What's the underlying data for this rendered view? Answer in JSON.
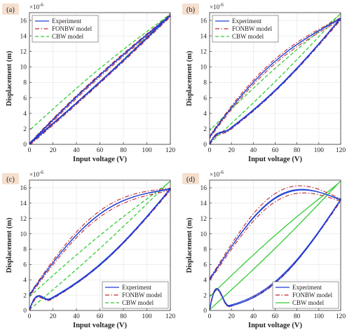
{
  "figure": {
    "background": "#ffffff",
    "panel_label_bg": "#f5dfcf",
    "axis_color": "#333333",
    "grid_color": "#e3e3e3"
  },
  "chart_data": [
    {
      "id": "a",
      "panel_label": "(a)",
      "type": "line",
      "xlabel": "Input voltage (V)",
      "ylabel": "Displacement (m)",
      "y_exponent": "×10",
      "y_exponent_power": "-6",
      "xlim": [
        0,
        120
      ],
      "ylim": [
        0,
        17
      ],
      "xticks": [
        0,
        20,
        40,
        60,
        80,
        100,
        120
      ],
      "yticks": [
        0,
        2,
        4,
        6,
        8,
        10,
        12,
        14,
        16
      ],
      "grid": true,
      "legend": {
        "location": "top-left"
      },
      "loop": {
        "amp": 60,
        "offset": 60,
        "low": 0.0,
        "high": 16.6,
        "up_bow": 0.6,
        "down_bow": 0.3,
        "turn": 0.0,
        "phase_shift": 0.02
      },
      "series": [
        {
          "name": "Experiment",
          "color": "#1f3fd8",
          "style": "solid"
        },
        {
          "name": "FONBW model",
          "color": "#c0282d",
          "style": "dashdot"
        },
        {
          "name": "CBW model",
          "color": "#33cc33",
          "style": "dashed"
        }
      ]
    },
    {
      "id": "b",
      "panel_label": "(b)",
      "type": "line",
      "xlabel": "Input voltage (V)",
      "ylabel": "Displacement (m)",
      "y_exponent": "×10",
      "y_exponent_power": "-6",
      "xlim": [
        0,
        120
      ],
      "ylim": [
        0,
        17
      ],
      "xticks": [
        0,
        20,
        40,
        60,
        80,
        100,
        120
      ],
      "yticks": [
        0,
        2,
        4,
        6,
        8,
        10,
        12,
        14,
        16
      ],
      "grid": true,
      "legend": {
        "location": "top-left"
      },
      "loop": {
        "amp": 60,
        "offset": 60,
        "low": 0.0,
        "high": 16.2,
        "up_bow": 2.4,
        "down_bow": 1.2,
        "turn": 1.0,
        "phase_shift": 0.06
      },
      "series": [
        {
          "name": "Experiment",
          "color": "#1f3fd8",
          "style": "solid"
        },
        {
          "name": "FONBW model",
          "color": "#c0282d",
          "style": "dashdot"
        },
        {
          "name": "CBW model",
          "color": "#33cc33",
          "style": "dashed"
        }
      ]
    },
    {
      "id": "c",
      "panel_label": "(c)",
      "type": "line",
      "xlabel": "Input voltage (V)",
      "ylabel": "Displacement (m)",
      "y_exponent": "×10",
      "y_exponent_power": "-6",
      "xlim": [
        0,
        120
      ],
      "ylim": [
        0,
        17
      ],
      "xticks": [
        0,
        20,
        40,
        60,
        80,
        100,
        120
      ],
      "yticks": [
        0,
        2,
        4,
        6,
        8,
        10,
        12,
        14,
        16
      ],
      "grid": true,
      "legend": {
        "location": "bottom-right"
      },
      "loop": {
        "amp": 60,
        "offset": 60,
        "low": 0.0,
        "high": 15.8,
        "up_bow": 4.2,
        "down_bow": 2.0,
        "turn": 2.2,
        "phase_shift": 0.12
      },
      "series": [
        {
          "name": "Experiment",
          "color": "#1f3fd8",
          "style": "solid"
        },
        {
          "name": "FONBW model",
          "color": "#c0282d",
          "style": "dashdot"
        },
        {
          "name": "CBW model",
          "color": "#33cc33",
          "style": "dashed"
        }
      ]
    },
    {
      "id": "d",
      "panel_label": "(d)",
      "type": "line",
      "xlabel": "Input voltage (V)",
      "ylabel": "Displacement (m)",
      "y_exponent": "×10",
      "y_exponent_power": "-6",
      "xlim": [
        0,
        120
      ],
      "ylim": [
        0,
        17
      ],
      "xticks": [
        0,
        20,
        40,
        60,
        80,
        100,
        120
      ],
      "yticks": [
        0,
        2,
        4,
        6,
        8,
        10,
        12,
        14,
        16
      ],
      "grid": true,
      "legend": {
        "location": "bottom-right"
      },
      "loop": {
        "amp": 60,
        "offset": 60,
        "low": 0.0,
        "high": 14.4,
        "up_bow": 6.5,
        "down_bow": 3.6,
        "turn": 4.5,
        "phase_shift": 0.18
      },
      "series": [
        {
          "name": "Experiment",
          "color": "#1f3fd8",
          "style": "solid"
        },
        {
          "name": "FONBW model",
          "color": "#c0282d",
          "style": "dashdot"
        },
        {
          "name": "CBW model",
          "color": "#33cc33",
          "style": "solid"
        }
      ]
    }
  ]
}
